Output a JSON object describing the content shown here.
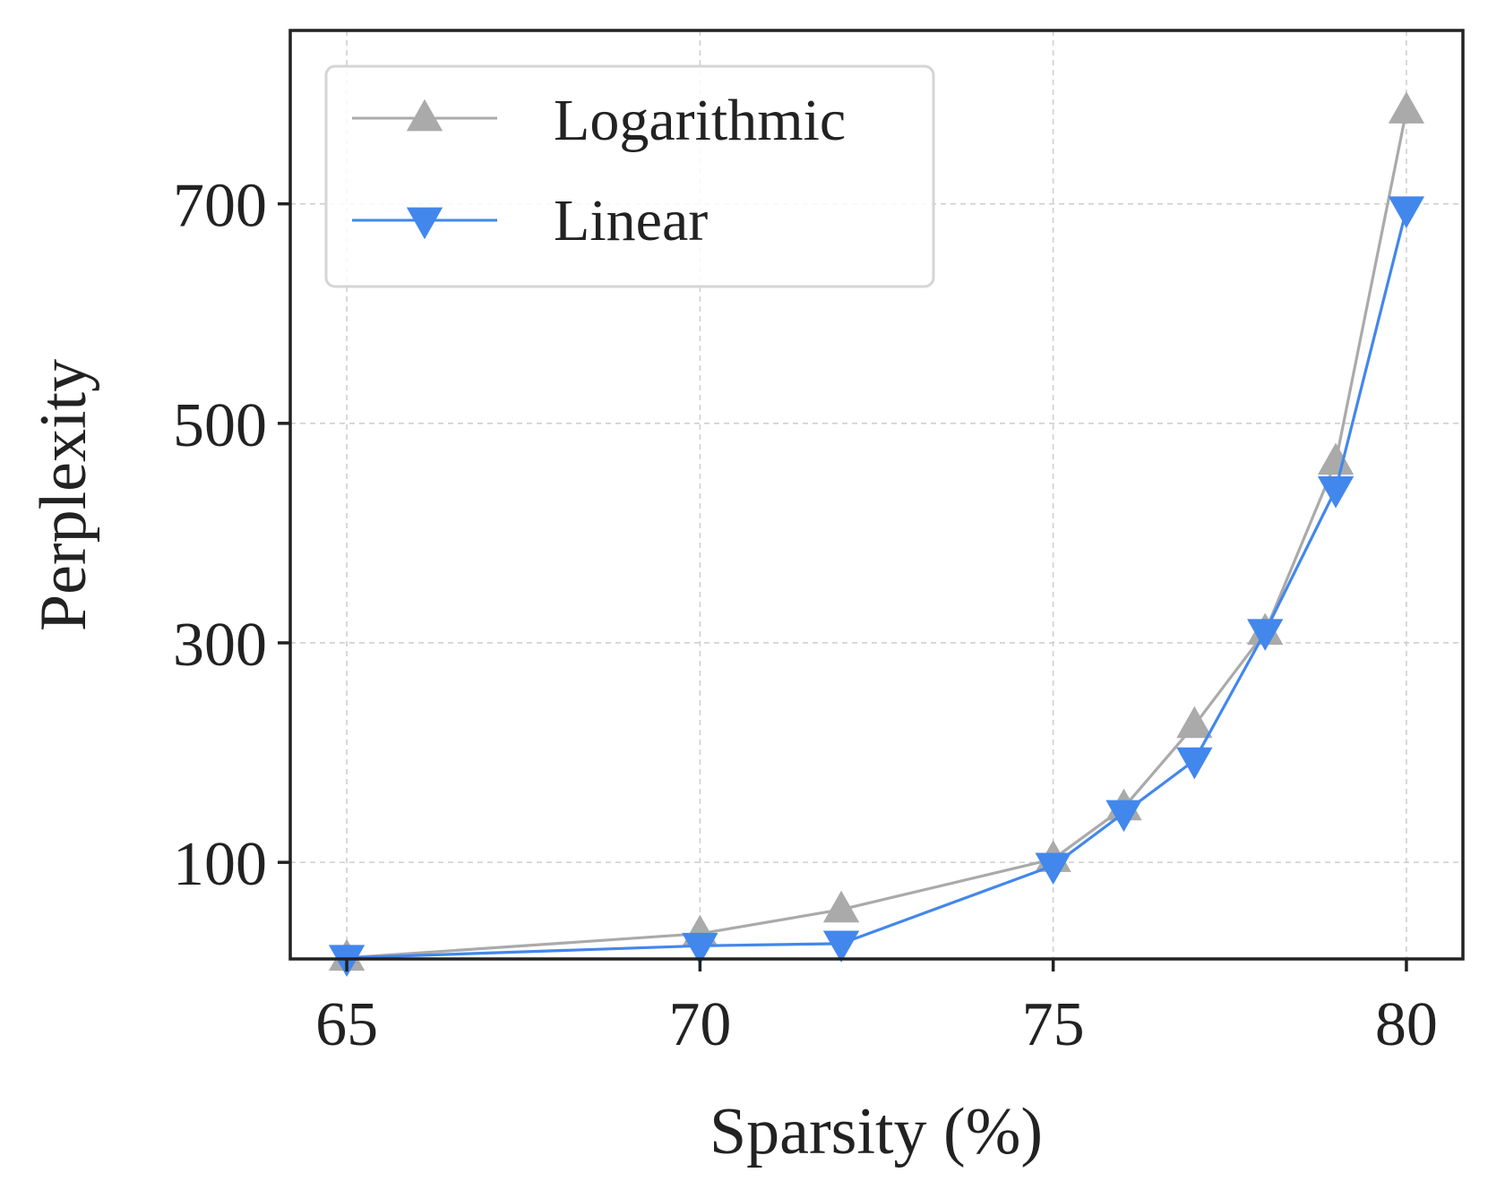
{
  "chart_data": {
    "type": "line",
    "title": "",
    "xlabel": "Sparsity (%)",
    "ylabel": "Perplexity",
    "x": [
      65,
      70,
      72,
      75,
      76,
      77,
      78,
      79,
      80
    ],
    "xticks": [
      65,
      70,
      75,
      80
    ],
    "yticks": [
      100,
      300,
      500,
      700
    ],
    "xlim": [
      64.2,
      80.8
    ],
    "ylim": [
      12,
      858
    ],
    "grid": true,
    "legend_position": "top-left",
    "series": [
      {
        "name": "Logarithmic",
        "color": "#aaaaaa",
        "marker": "triangle-up",
        "values": [
          13,
          35,
          57,
          103,
          150,
          225,
          310,
          465,
          785
        ]
      },
      {
        "name": "Linear",
        "color": "#4287ec",
        "marker": "triangle-down",
        "values": [
          13,
          24,
          26,
          97,
          145,
          193,
          310,
          440,
          695
        ]
      }
    ]
  }
}
